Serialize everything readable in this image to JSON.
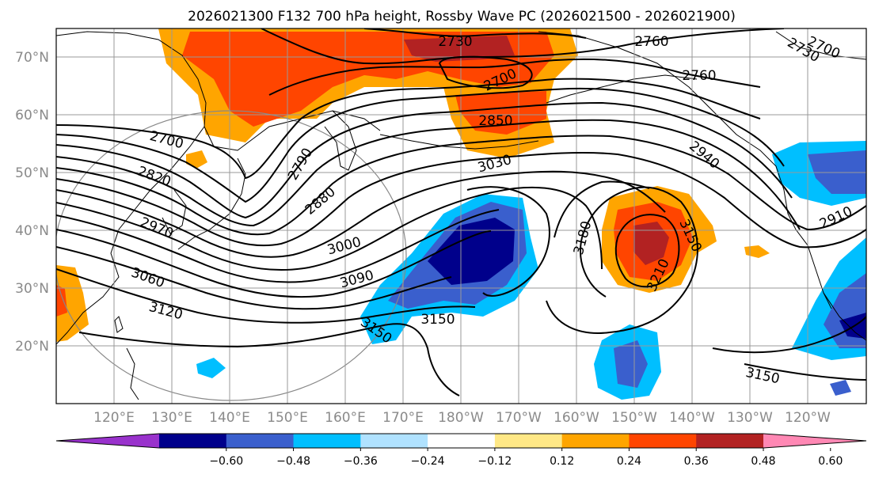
{
  "title": "2026021300 F132 700 hPa height, Rossby Wave PC (2026021500 - 2026021900)",
  "lat_labels": [
    "70°N",
    "60°N",
    "50°N",
    "40°N",
    "30°N",
    "20°N"
  ],
  "lon_labels": [
    "120°E",
    "130°E",
    "140°E",
    "150°E",
    "160°E",
    "170°E",
    "180°W",
    "170°W",
    "160°W",
    "150°W",
    "140°W",
    "130°W",
    "120°W"
  ],
  "contour_labels": [
    "2730",
    "2760",
    "2760",
    "2700",
    "2730",
    "2700",
    "2850",
    "2700",
    "2820",
    "2790",
    "2880",
    "2940",
    "2970",
    "3030",
    "3000",
    "3060",
    "3090",
    "3120",
    "3150",
    "3150",
    "3180",
    "3150",
    "3210",
    "2910",
    "3150"
  ],
  "colorbar": {
    "ticks": [
      "−0.60",
      "−0.48",
      "−0.36",
      "−0.24",
      "−0.12",
      "0.12",
      "0.24",
      "0.36",
      "0.48",
      "0.60"
    ],
    "colors": [
      "#9932cc",
      "#00008b",
      "#3a5fcd",
      "#00bfff",
      "#b0e2ff",
      "#ffffff",
      "#ffe886",
      "#ffa500",
      "#ff4500",
      "#b22222",
      "#ff88b4"
    ]
  },
  "chart_data": {
    "type": "map",
    "title": "2026021300 F132 700 hPa height, Rossby Wave PC (2026021500 - 2026021900)",
    "lon_range": [
      110,
      250
    ],
    "lat_range": [
      10,
      75
    ],
    "contour_field": "700 hPa height",
    "contour_levels": [
      2700,
      2730,
      2760,
      2790,
      2820,
      2850,
      2880,
      2910,
      2940,
      2970,
      3000,
      3030,
      3060,
      3090,
      3120,
      3150,
      3180,
      3210
    ],
    "shaded_field": "Rossby Wave PC",
    "color_levels": [
      -0.6,
      -0.48,
      -0.36,
      -0.24,
      -0.12,
      0.12,
      0.24,
      0.36,
      0.48,
      0.6
    ],
    "grid": true
  }
}
